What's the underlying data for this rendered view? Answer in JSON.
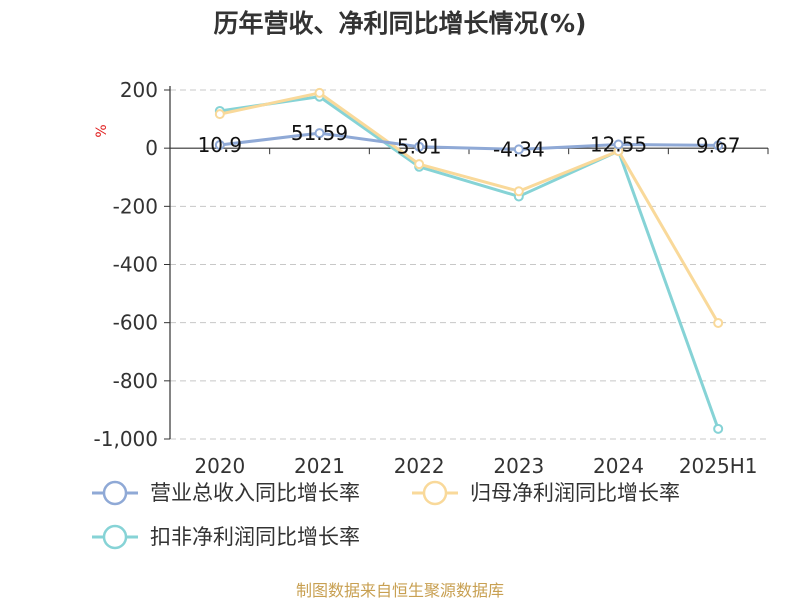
{
  "chart_data": {
    "type": "line",
    "title": "历年营收、净利同比增长情况(%)",
    "ylabel": "%",
    "categories": [
      "2020",
      "2021",
      "2022",
      "2023",
      "2024",
      "2025H1"
    ],
    "ylim": [
      -1000,
      200
    ],
    "yticks": [
      "200",
      "0",
      "-200",
      "-400",
      "-600",
      "-800",
      "-1,000"
    ],
    "grid": true,
    "legend_position": "bottom-left",
    "series": [
      {
        "name": "营业总收入同比增长率",
        "color": "#8fa9d6",
        "values": [
          10.9,
          51.59,
          5.01,
          -4.34,
          12.55,
          9.67
        ],
        "labels": [
          "10.9",
          "51.59",
          "5.01",
          "-4.34",
          "12.55",
          "9.67"
        ]
      },
      {
        "name": "归母净利润同比增长率",
        "color": "#f9d99a",
        "values": [
          117,
          190,
          -55,
          -148,
          -10,
          -601
        ]
      },
      {
        "name": "扣非净利润同比增长率",
        "color": "#86d3d6",
        "values": [
          128,
          177,
          -64,
          -166,
          -10,
          -965
        ]
      }
    ]
  },
  "footer": {
    "source": "制图数据来自恒生聚源数据库"
  }
}
